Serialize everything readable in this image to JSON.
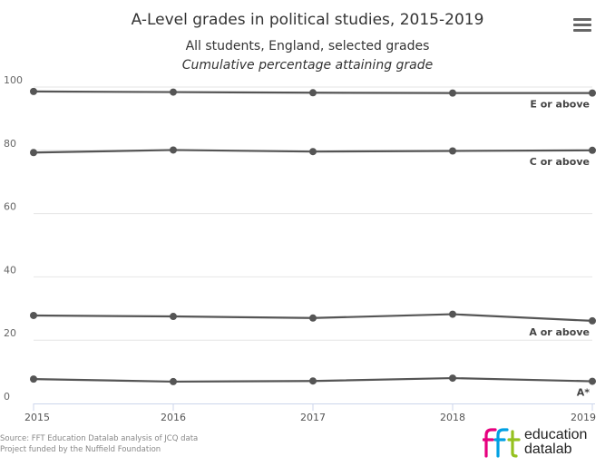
{
  "menu": {
    "icon": "hamburger-menu-icon"
  },
  "credits": {
    "line1": "Source: FFT Education Datalab analysis of JCQ data",
    "line2": "Project funded by the Nuffield Foundation"
  },
  "logo": {
    "mark": "fft",
    "word1": "education",
    "word2": "datalab",
    "colors": [
      "#e6007e",
      "#00a0e3",
      "#95c11f"
    ]
  },
  "chart_data": {
    "type": "line",
    "title": "A-Level grades in political studies, 2015-2019",
    "subtitle": "All students, England, selected grades",
    "subtitle2": "Cumulative percentage attaining grade",
    "xlabel": "",
    "ylabel": "",
    "x": [
      2015,
      2016,
      2017,
      2018,
      2019
    ],
    "x_tick_labels": [
      "2015",
      "2016",
      "2017",
      "2018",
      "2019"
    ],
    "ylim": [
      0,
      100
    ],
    "y_ticks": [
      0,
      20,
      40,
      60,
      80,
      100
    ],
    "y_tick_labels": [
      "0",
      "20",
      "40",
      "60",
      "80",
      "100"
    ],
    "grid": true,
    "line_color": "#555555",
    "series": [
      {
        "name": "E or above",
        "values": [
          98.6,
          98.4,
          98.2,
          98.1,
          98.1
        ]
      },
      {
        "name": "C or above",
        "values": [
          79.3,
          80.1,
          79.6,
          79.8,
          80.0
        ]
      },
      {
        "name": "A or above",
        "values": [
          27.8,
          27.5,
          27.0,
          28.2,
          26.1
        ]
      },
      {
        "name": "A*",
        "values": [
          7.7,
          6.9,
          7.1,
          8.0,
          7.0
        ]
      }
    ]
  }
}
